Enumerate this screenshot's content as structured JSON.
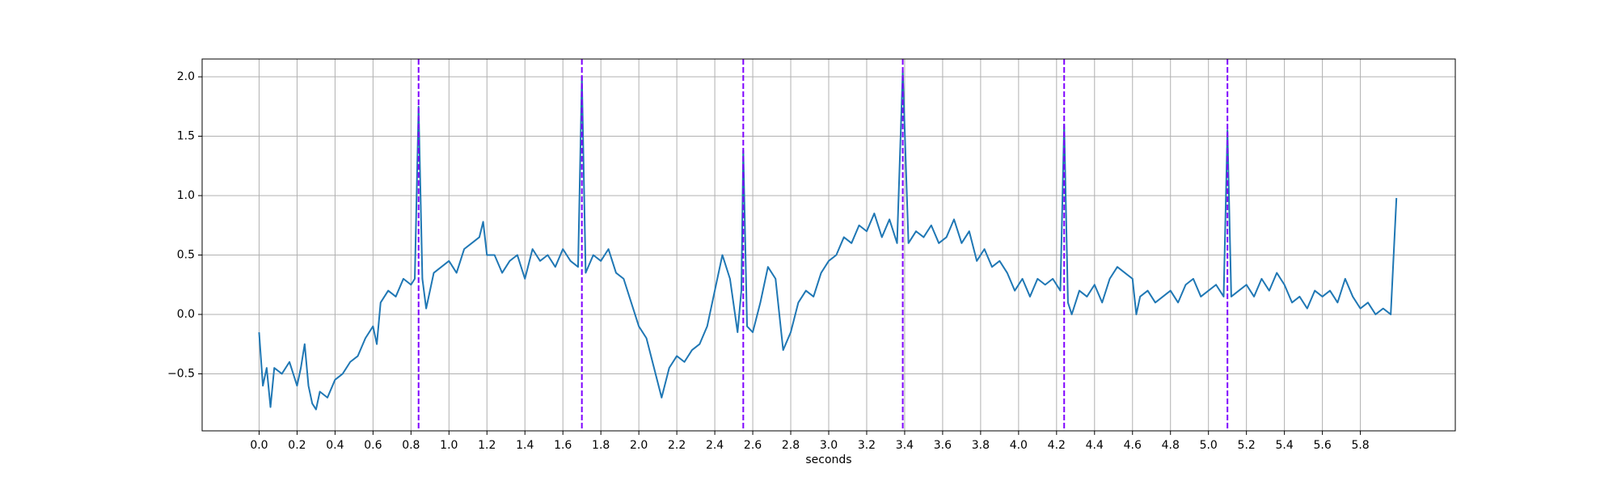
{
  "chart_data": {
    "type": "line",
    "xlabel": "seconds",
    "x": [
      0,
      0.02,
      0.04,
      0.06,
      0.08,
      0.12,
      0.16,
      0.2,
      0.22,
      0.24,
      0.26,
      0.28,
      0.3,
      0.32,
      0.36,
      0.4,
      0.44,
      0.48,
      0.52,
      0.56,
      0.6,
      0.62,
      0.64,
      0.68,
      0.72,
      0.76,
      0.8,
      0.82,
      0.84,
      0.86,
      0.88,
      0.92,
      0.96,
      1.0,
      1.04,
      1.08,
      1.12,
      1.16,
      1.18,
      1.2,
      1.24,
      1.28,
      1.32,
      1.36,
      1.4,
      1.44,
      1.48,
      1.52,
      1.56,
      1.6,
      1.64,
      1.68,
      1.7,
      1.72,
      1.76,
      1.8,
      1.84,
      1.88,
      1.92,
      1.96,
      2.0,
      2.04,
      2.08,
      2.12,
      2.16,
      2.2,
      2.24,
      2.28,
      2.32,
      2.36,
      2.4,
      2.44,
      2.48,
      2.52,
      2.54,
      2.55,
      2.57,
      2.6,
      2.64,
      2.68,
      2.72,
      2.76,
      2.8,
      2.84,
      2.88,
      2.92,
      2.96,
      3.0,
      3.04,
      3.08,
      3.12,
      3.16,
      3.2,
      3.24,
      3.28,
      3.32,
      3.36,
      3.39,
      3.42,
      3.46,
      3.5,
      3.54,
      3.58,
      3.62,
      3.66,
      3.7,
      3.74,
      3.78,
      3.82,
      3.86,
      3.9,
      3.94,
      3.98,
      4.02,
      4.06,
      4.1,
      4.14,
      4.18,
      4.22,
      4.24,
      4.26,
      4.28,
      4.32,
      4.36,
      4.4,
      4.44,
      4.48,
      4.52,
      4.56,
      4.6,
      4.62,
      4.64,
      4.68,
      4.72,
      4.76,
      4.8,
      4.84,
      4.88,
      4.92,
      4.96,
      5.0,
      5.04,
      5.08,
      5.1,
      5.12,
      5.16,
      5.2,
      5.24,
      5.28,
      5.32,
      5.36,
      5.4,
      5.44,
      5.48,
      5.52,
      5.56,
      5.6,
      5.64,
      5.68,
      5.72,
      5.76,
      5.8,
      5.84,
      5.88,
      5.92,
      5.96,
      5.99
    ],
    "series": [
      {
        "color": "#1f77b4",
        "values": [
          -0.15,
          -0.6,
          -0.45,
          -0.78,
          -0.45,
          -0.5,
          -0.4,
          -0.6,
          -0.45,
          -0.25,
          -0.6,
          -0.75,
          -0.8,
          -0.65,
          -0.7,
          -0.55,
          -0.5,
          -0.4,
          -0.35,
          -0.2,
          -0.1,
          -0.25,
          0.1,
          0.2,
          0.15,
          0.3,
          0.25,
          0.3,
          1.75,
          0.3,
          0.05,
          0.35,
          0.4,
          0.45,
          0.35,
          0.55,
          0.6,
          0.65,
          0.78,
          0.5,
          0.5,
          0.35,
          0.45,
          0.5,
          0.3,
          0.55,
          0.45,
          0.5,
          0.4,
          0.55,
          0.45,
          0.4,
          2.0,
          0.35,
          0.5,
          0.45,
          0.55,
          0.35,
          0.3,
          0.1,
          -0.1,
          -0.2,
          -0.45,
          -0.7,
          -0.45,
          -0.35,
          -0.4,
          -0.3,
          -0.25,
          -0.1,
          0.2,
          0.5,
          0.3,
          -0.15,
          0.2,
          1.38,
          -0.1,
          -0.15,
          0.1,
          0.4,
          0.3,
          -0.3,
          -0.15,
          0.1,
          0.2,
          0.15,
          0.35,
          0.45,
          0.5,
          0.65,
          0.6,
          0.75,
          0.7,
          0.85,
          0.65,
          0.8,
          0.6,
          2.05,
          0.6,
          0.7,
          0.65,
          0.75,
          0.6,
          0.65,
          0.8,
          0.6,
          0.7,
          0.45,
          0.55,
          0.4,
          0.45,
          0.35,
          0.2,
          0.3,
          0.15,
          0.3,
          0.25,
          0.3,
          0.2,
          1.6,
          0.1,
          0.0,
          0.2,
          0.15,
          0.25,
          0.1,
          0.3,
          0.4,
          0.35,
          0.3,
          0.0,
          0.15,
          0.2,
          0.1,
          0.15,
          0.2,
          0.1,
          0.25,
          0.3,
          0.15,
          0.2,
          0.25,
          0.15,
          1.55,
          0.15,
          0.2,
          0.25,
          0.15,
          0.3,
          0.2,
          0.35,
          0.25,
          0.1,
          0.15,
          0.05,
          0.2,
          0.15,
          0.2,
          0.1,
          0.3,
          0.15,
          0.05,
          0.1,
          0.0,
          0.05,
          0.0,
          0.98
        ]
      }
    ],
    "vlines": {
      "x": [
        0.84,
        1.7,
        2.55,
        3.39,
        4.24,
        5.1
      ],
      "color": "#7f00ff",
      "dashed": true
    },
    "xlim": [
      -0.3,
      6.3
    ],
    "xticks": [
      {
        "value": 0,
        "label": "0.0"
      },
      0.2,
      0.4,
      0.6,
      0.8,
      {
        "value": 1,
        "label": "1.0"
      },
      1.2,
      1.4,
      1.6,
      1.8,
      {
        "value": 2,
        "label": "2.0"
      },
      2.2,
      2.4,
      2.6,
      2.8,
      {
        "value": 3,
        "label": "3.0"
      },
      3.2,
      3.4,
      3.6,
      3.8,
      {
        "value": 4,
        "label": "4.0"
      },
      4.2,
      4.4,
      4.6,
      4.8,
      {
        "value": 5,
        "label": "5.0"
      },
      5.2,
      5.4,
      5.6,
      5.8
    ],
    "ylim": [
      -0.98,
      2.15
    ],
    "yticks": [
      {
        "value": -0.5,
        "label": "−0.5"
      },
      {
        "value": 0,
        "label": "0.0"
      },
      0.5,
      {
        "value": 1,
        "label": "1.0"
      },
      1.5,
      {
        "value": 2,
        "label": "2.0"
      }
    ],
    "grid": true
  }
}
